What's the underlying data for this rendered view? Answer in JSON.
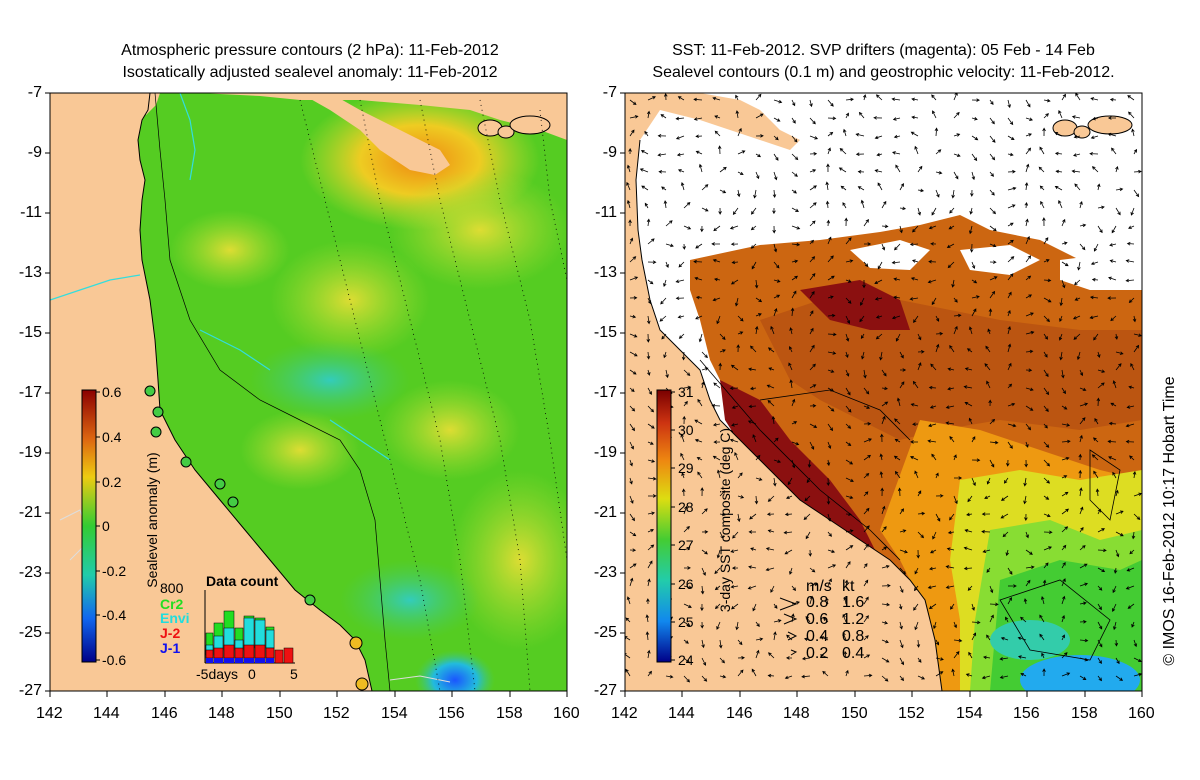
{
  "left_panel": {
    "title_line1": "Atmospheric pressure contours (2 hPa): 11-Feb-2012",
    "title_line2": "Isostatically adjusted sealevel anomaly: 11-Feb-2012",
    "y_ticks": [
      "-7",
      "-9",
      "-11",
      "-13",
      "-15",
      "-17",
      "-19",
      "-21",
      "-23",
      "-25",
      "-27"
    ],
    "x_ticks": [
      "142",
      "144",
      "146",
      "148",
      "150",
      "152",
      "154",
      "156",
      "158",
      "160"
    ],
    "colorbar": {
      "label": "Sealevel anomaly (m)",
      "ticks": [
        "0.6",
        "0.4",
        "0.2",
        "0",
        "-0.2",
        "-0.4",
        "-0.6"
      ]
    },
    "data_count": {
      "title": "Data count",
      "max_label": "800",
      "missions": [
        {
          "name": "Cr2",
          "color": "#22dd22"
        },
        {
          "name": "Envi",
          "color": "#22dddd"
        },
        {
          "name": "J-2",
          "color": "#ee1111"
        },
        {
          "name": "J-1",
          "color": "#1111ee"
        }
      ],
      "x_labels": [
        "-5days",
        "0",
        "5"
      ]
    }
  },
  "right_panel": {
    "title_line1": "SST: 11-Feb-2012. SVP drifters (magenta): 05 Feb - 14 Feb",
    "title_line2": "Sealevel contours (0.1 m) and geostrophic velocity: 11-Feb-2012.",
    "y_ticks": [
      "-7",
      "-9",
      "-11",
      "-13",
      "-15",
      "-17",
      "-19",
      "-21",
      "-23",
      "-25",
      "-27"
    ],
    "x_ticks": [
      "142",
      "144",
      "146",
      "148",
      "150",
      "152",
      "154",
      "156",
      "158",
      "160"
    ],
    "colorbar": {
      "label": "3-day SST composite (deg C)",
      "ticks": [
        "31",
        "30",
        "29",
        "28",
        "27",
        "26",
        "25",
        "24"
      ]
    },
    "velocity_legend": {
      "header_ms": "m/s",
      "header_kt": "kt",
      "rows": [
        {
          "ms": "0.8",
          "kt": "1.6"
        },
        {
          "ms": "0.6",
          "kt": "1.2"
        },
        {
          "ms": "0.4",
          "kt": "0.8"
        },
        {
          "ms": "0.2",
          "kt": "0.4"
        }
      ]
    }
  },
  "credit": "© IMOS 16-Feb-2012 10:17 Hobart Time",
  "colors": {
    "land": "#f9c896",
    "ocean_green": "#55cc22",
    "warm": "#cc5511",
    "hot": "#8b1010"
  }
}
